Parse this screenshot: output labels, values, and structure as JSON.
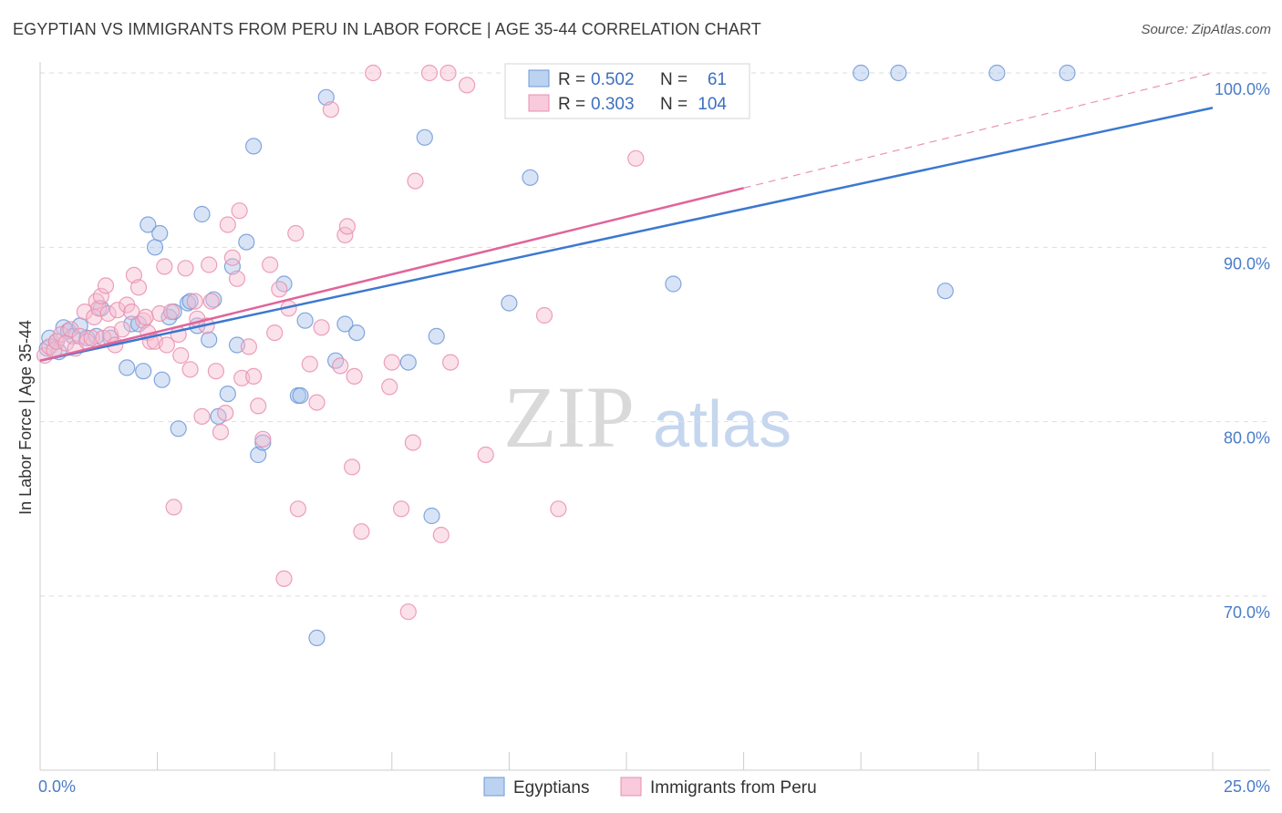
{
  "title": "EGYPTIAN VS IMMIGRANTS FROM PERU IN LABOR FORCE | AGE 35-44 CORRELATION CHART",
  "source": "Source: ZipAtlas.com",
  "watermark": {
    "zip": "ZIP",
    "atlas": "atlas"
  },
  "chart_data": {
    "type": "scatter",
    "ylabel": "In Labor Force | Age 35-44",
    "xlim": [
      0,
      25
    ],
    "ylim": [
      60,
      101.5
    ],
    "x_tick_labels": [
      {
        "value": 0,
        "label": "0.0%"
      },
      {
        "value": 25,
        "label": "25.0%"
      }
    ],
    "x_minor_ticks": [
      2.5,
      5,
      7.5,
      10,
      12.5,
      15,
      17.5,
      20,
      22.5,
      25
    ],
    "y_ticks": [
      {
        "value": 70,
        "label": "70.0%"
      },
      {
        "value": 80,
        "label": "80.0%"
      },
      {
        "value": 90,
        "label": "90.0%"
      },
      {
        "value": 100,
        "label": "100.0%"
      }
    ],
    "grid": "horizontal dashed",
    "legend_position": "top-center",
    "series": [
      {
        "name": "Egyptians",
        "color": "#a9c4ec",
        "stroke": "#6f98d8",
        "line_color": "#3b78d0",
        "R": "0.502",
        "N": "61",
        "trend": {
          "x": [
            0,
            25
          ],
          "y": [
            83.5,
            98.0
          ],
          "dashed_from": null
        },
        "points": [
          [
            0.15,
            84.2
          ],
          [
            0.2,
            84.8
          ],
          [
            0.35,
            84.6
          ],
          [
            0.4,
            84.0
          ],
          [
            0.5,
            85.4
          ],
          [
            0.6,
            85.2
          ],
          [
            0.7,
            84.9
          ],
          [
            0.85,
            85.5
          ],
          [
            1.0,
            84.8
          ],
          [
            1.2,
            84.9
          ],
          [
            1.3,
            86.5
          ],
          [
            1.5,
            84.8
          ],
          [
            1.85,
            83.1
          ],
          [
            1.95,
            85.6
          ],
          [
            2.1,
            85.6
          ],
          [
            2.2,
            82.9
          ],
          [
            2.3,
            91.3
          ],
          [
            2.45,
            90.0
          ],
          [
            2.55,
            90.8
          ],
          [
            2.6,
            82.4
          ],
          [
            2.75,
            86.0
          ],
          [
            2.85,
            86.3
          ],
          [
            2.95,
            79.6
          ],
          [
            3.15,
            86.8
          ],
          [
            3.2,
            86.9
          ],
          [
            3.35,
            85.5
          ],
          [
            3.45,
            91.9
          ],
          [
            3.6,
            84.7
          ],
          [
            3.7,
            87.0
          ],
          [
            3.8,
            80.3
          ],
          [
            4.0,
            81.6
          ],
          [
            4.1,
            88.9
          ],
          [
            4.2,
            84.4
          ],
          [
            4.4,
            90.3
          ],
          [
            4.55,
            95.8
          ],
          [
            4.65,
            78.1
          ],
          [
            4.75,
            78.8
          ],
          [
            5.2,
            87.9
          ],
          [
            5.5,
            81.5
          ],
          [
            5.55,
            81.5
          ],
          [
            5.65,
            85.8
          ],
          [
            5.9,
            67.6
          ],
          [
            6.1,
            98.6
          ],
          [
            6.3,
            83.5
          ],
          [
            6.5,
            85.6
          ],
          [
            6.75,
            85.1
          ],
          [
            7.85,
            83.4
          ],
          [
            8.2,
            96.3
          ],
          [
            8.35,
            74.6
          ],
          [
            8.45,
            84.9
          ],
          [
            10.0,
            86.8
          ],
          [
            10.45,
            94.0
          ],
          [
            13.5,
            87.9
          ],
          [
            17.5,
            100.0
          ],
          [
            18.3,
            100.0
          ],
          [
            19.3,
            87.5
          ],
          [
            20.4,
            100.0
          ],
          [
            21.9,
            100.0
          ]
        ]
      },
      {
        "name": "Immigrants from Peru",
        "color": "#f6bcd0",
        "stroke": "#e98fae",
        "line_color": "#e0649a",
        "R": "0.303",
        "N": "104",
        "trend": {
          "x": [
            0,
            25
          ],
          "y": [
            83.5,
            100.0
          ],
          "dashed_from": 15
        },
        "points": [
          [
            0.1,
            83.8
          ],
          [
            0.2,
            84.3
          ],
          [
            0.3,
            84.1
          ],
          [
            0.35,
            84.6
          ],
          [
            0.45,
            85.0
          ],
          [
            0.55,
            84.5
          ],
          [
            0.65,
            85.3
          ],
          [
            0.75,
            84.2
          ],
          [
            0.85,
            84.9
          ],
          [
            0.95,
            86.3
          ],
          [
            1.0,
            84.6
          ],
          [
            1.1,
            84.8
          ],
          [
            1.15,
            86.0
          ],
          [
            1.2,
            86.9
          ],
          [
            1.25,
            86.5
          ],
          [
            1.3,
            87.2
          ],
          [
            1.35,
            84.8
          ],
          [
            1.4,
            87.8
          ],
          [
            1.45,
            86.2
          ],
          [
            1.5,
            85.0
          ],
          [
            1.6,
            84.4
          ],
          [
            1.65,
            86.4
          ],
          [
            1.75,
            85.3
          ],
          [
            1.85,
            86.7
          ],
          [
            1.95,
            86.3
          ],
          [
            2.0,
            88.4
          ],
          [
            2.1,
            87.7
          ],
          [
            2.2,
            85.8
          ],
          [
            2.25,
            86.0
          ],
          [
            2.3,
            85.1
          ],
          [
            2.35,
            84.6
          ],
          [
            2.45,
            84.6
          ],
          [
            2.55,
            86.2
          ],
          [
            2.65,
            88.9
          ],
          [
            2.7,
            84.4
          ],
          [
            2.8,
            86.3
          ],
          [
            2.85,
            75.1
          ],
          [
            2.95,
            85.0
          ],
          [
            3.0,
            83.8
          ],
          [
            3.1,
            88.8
          ],
          [
            3.2,
            83.0
          ],
          [
            3.3,
            86.9
          ],
          [
            3.35,
            85.9
          ],
          [
            3.45,
            80.3
          ],
          [
            3.55,
            85.5
          ],
          [
            3.6,
            89.0
          ],
          [
            3.65,
            86.9
          ],
          [
            3.75,
            82.9
          ],
          [
            3.85,
            79.4
          ],
          [
            3.95,
            80.5
          ],
          [
            4.0,
            91.3
          ],
          [
            4.1,
            89.4
          ],
          [
            4.2,
            88.2
          ],
          [
            4.25,
            92.1
          ],
          [
            4.3,
            82.5
          ],
          [
            4.45,
            84.3
          ],
          [
            4.55,
            82.6
          ],
          [
            4.65,
            80.9
          ],
          [
            4.75,
            79.0
          ],
          [
            4.9,
            89.0
          ],
          [
            5.0,
            85.1
          ],
          [
            5.1,
            87.6
          ],
          [
            5.2,
            71.0
          ],
          [
            5.3,
            86.5
          ],
          [
            5.45,
            90.8
          ],
          [
            5.5,
            75.0
          ],
          [
            5.75,
            83.3
          ],
          [
            5.9,
            81.1
          ],
          [
            6.0,
            85.4
          ],
          [
            6.2,
            97.9
          ],
          [
            6.4,
            83.2
          ],
          [
            6.5,
            90.7
          ],
          [
            6.55,
            91.2
          ],
          [
            6.65,
            77.4
          ],
          [
            6.7,
            82.6
          ],
          [
            6.85,
            73.7
          ],
          [
            7.1,
            100.0
          ],
          [
            7.45,
            82.0
          ],
          [
            7.5,
            83.4
          ],
          [
            7.7,
            75.0
          ],
          [
            7.85,
            69.1
          ],
          [
            7.95,
            78.8
          ],
          [
            8.0,
            93.8
          ],
          [
            8.3,
            100.0
          ],
          [
            8.55,
            73.5
          ],
          [
            8.7,
            100.0
          ],
          [
            8.75,
            83.4
          ],
          [
            9.1,
            99.3
          ],
          [
            9.5,
            78.1
          ],
          [
            10.25,
            100.0
          ],
          [
            10.75,
            86.1
          ],
          [
            11.05,
            75.0
          ],
          [
            12.7,
            95.1
          ],
          [
            13.6,
            100.0
          ]
        ]
      }
    ]
  }
}
